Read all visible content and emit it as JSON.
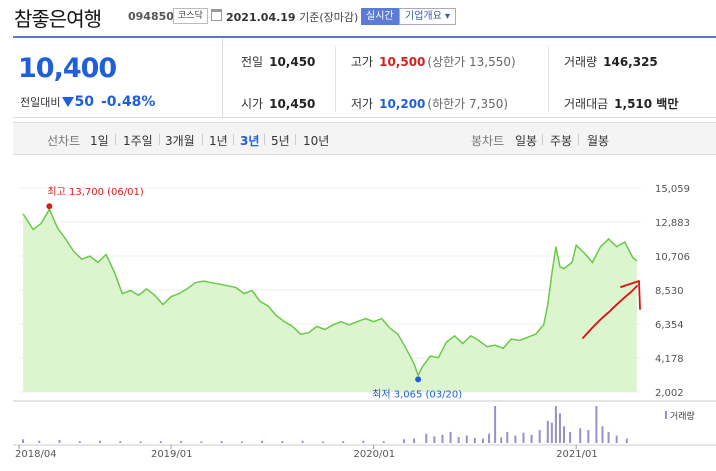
{
  "header": {
    "company_name": "참좋은여행",
    "code": "094850",
    "market": "코스닥",
    "date": "2021.04.19",
    "date_suffix": "기준(장마감)",
    "realtime_button": "실시간",
    "company_info_button": "기업개요 ▾"
  },
  "summary": {
    "price": "10,400",
    "change_label": "전일대비",
    "change": "50",
    "change_pct": "-0.48%",
    "items": [
      {
        "label": "전일",
        "value": "10,450"
      },
      {
        "label": "고가",
        "value": "10,500",
        "sub": "(상한가 13,550)"
      },
      {
        "label": "거래량",
        "value": "146,325"
      },
      {
        "label": "시가",
        "value": "10,450"
      },
      {
        "label": "저가",
        "value": "10,200",
        "sub": "(하한가 7,350)"
      },
      {
        "label": "거래대금",
        "value": "1,510 백만"
      }
    ]
  },
  "toolbar": {
    "line_chart_label": "선차트",
    "periods": [
      "1일",
      "1주일",
      "3개월",
      "1년",
      "3년",
      "5년",
      "10년"
    ],
    "selected_period": "3년",
    "candle_label": "봉차트",
    "candles": [
      "일봉",
      "주봉",
      "월봉"
    ]
  },
  "colors": {
    "accent": "#1f5fd9",
    "rise": "#d42020",
    "line": "#6bc94a",
    "fill": "#dcf5cf",
    "volume": "#9b8fc8"
  },
  "chart_data": {
    "type": "area",
    "title": "",
    "xlabel": "",
    "ylabel": "",
    "x_range": [
      "2018-04",
      "2021-04"
    ],
    "ylim": [
      2002,
      15059
    ],
    "y_ticks": [
      "15,059",
      "12,883",
      "10,706",
      "8,530",
      "6,354",
      "4,178",
      "2,002"
    ],
    "x_ticks": [
      "2018/04",
      "2019/01",
      "2020/01",
      "2021/01"
    ],
    "high_label": "최고 13,700 (06/01)",
    "low_label": "최저 3,065 (03/20)",
    "volume_legend": "거래량",
    "series": [
      {
        "values": [
          [
            2018.27,
            13400
          ],
          [
            2018.32,
            12400
          ],
          [
            2018.36,
            12800
          ],
          [
            2018.4,
            13700
          ],
          [
            2018.44,
            12500
          ],
          [
            2018.48,
            11800
          ],
          [
            2018.52,
            11000
          ],
          [
            2018.56,
            10500
          ],
          [
            2018.6,
            10700
          ],
          [
            2018.64,
            10300
          ],
          [
            2018.68,
            10800
          ],
          [
            2018.72,
            9700
          ],
          [
            2018.76,
            8300
          ],
          [
            2018.8,
            8500
          ],
          [
            2018.84,
            8200
          ],
          [
            2018.88,
            8600
          ],
          [
            2018.92,
            8200
          ],
          [
            2018.96,
            7600
          ],
          [
            2019.0,
            8100
          ],
          [
            2019.04,
            8300
          ],
          [
            2019.08,
            8600
          ],
          [
            2019.12,
            9000
          ],
          [
            2019.16,
            9100
          ],
          [
            2019.2,
            9000
          ],
          [
            2019.24,
            8900
          ],
          [
            2019.28,
            8800
          ],
          [
            2019.32,
            8700
          ],
          [
            2019.36,
            8300
          ],
          [
            2019.4,
            8500
          ],
          [
            2019.44,
            7800
          ],
          [
            2019.48,
            7500
          ],
          [
            2019.52,
            6900
          ],
          [
            2019.56,
            6500
          ],
          [
            2019.6,
            6200
          ],
          [
            2019.64,
            5700
          ],
          [
            2019.68,
            5800
          ],
          [
            2019.72,
            6200
          ],
          [
            2019.76,
            6000
          ],
          [
            2019.8,
            6300
          ],
          [
            2019.84,
            6500
          ],
          [
            2019.88,
            6300
          ],
          [
            2019.92,
            6500
          ],
          [
            2019.96,
            6700
          ],
          [
            2020.0,
            6500
          ],
          [
            2020.04,
            6700
          ],
          [
            2020.08,
            6100
          ],
          [
            2020.12,
            5700
          ],
          [
            2020.16,
            4800
          ],
          [
            2020.2,
            3800
          ],
          [
            2020.22,
            3065
          ],
          [
            2020.24,
            3600
          ],
          [
            2020.28,
            4300
          ],
          [
            2020.32,
            4200
          ],
          [
            2020.36,
            5200
          ],
          [
            2020.4,
            5600
          ],
          [
            2020.44,
            5100
          ],
          [
            2020.48,
            5600
          ],
          [
            2020.52,
            5300
          ],
          [
            2020.56,
            4900
          ],
          [
            2020.6,
            5000
          ],
          [
            2020.64,
            4800
          ],
          [
            2020.68,
            5400
          ],
          [
            2020.72,
            5300
          ],
          [
            2020.76,
            5500
          ],
          [
            2020.8,
            5700
          ],
          [
            2020.84,
            6300
          ],
          [
            2020.86,
            7600
          ],
          [
            2020.88,
            9600
          ],
          [
            2020.9,
            11300
          ],
          [
            2020.92,
            10000
          ],
          [
            2020.94,
            9900
          ],
          [
            2020.98,
            10300
          ],
          [
            2021.0,
            11400
          ],
          [
            2021.04,
            10900
          ],
          [
            2021.08,
            10300
          ],
          [
            2021.12,
            11300
          ],
          [
            2021.16,
            11800
          ],
          [
            2021.2,
            11300
          ],
          [
            2021.24,
            11600
          ],
          [
            2021.28,
            10600
          ],
          [
            2021.3,
            10400
          ]
        ]
      }
    ],
    "volume": [
      [
        2018.27,
        0.1
      ],
      [
        2018.35,
        0.06
      ],
      [
        2018.45,
        0.08
      ],
      [
        2018.55,
        0.05
      ],
      [
        2018.65,
        0.06
      ],
      [
        2018.75,
        0.05
      ],
      [
        2018.85,
        0.04
      ],
      [
        2018.95,
        0.05
      ],
      [
        2019.05,
        0.05
      ],
      [
        2019.15,
        0.04
      ],
      [
        2019.25,
        0.05
      ],
      [
        2019.35,
        0.04
      ],
      [
        2019.45,
        0.06
      ],
      [
        2019.55,
        0.05
      ],
      [
        2019.65,
        0.06
      ],
      [
        2019.75,
        0.04
      ],
      [
        2019.85,
        0.05
      ],
      [
        2019.95,
        0.06
      ],
      [
        2020.05,
        0.05
      ],
      [
        2020.15,
        0.1
      ],
      [
        2020.2,
        0.12
      ],
      [
        2020.26,
        0.25
      ],
      [
        2020.3,
        0.18
      ],
      [
        2020.34,
        0.22
      ],
      [
        2020.38,
        0.3
      ],
      [
        2020.42,
        0.16
      ],
      [
        2020.46,
        0.2
      ],
      [
        2020.5,
        0.14
      ],
      [
        2020.54,
        0.12
      ],
      [
        2020.57,
        0.25
      ],
      [
        2020.6,
        1.0
      ],
      [
        2020.63,
        0.15
      ],
      [
        2020.66,
        0.3
      ],
      [
        2020.7,
        0.2
      ],
      [
        2020.74,
        0.28
      ],
      [
        2020.78,
        0.22
      ],
      [
        2020.82,
        0.35
      ],
      [
        2020.86,
        0.6
      ],
      [
        2020.88,
        0.55
      ],
      [
        2020.9,
        1.0
      ],
      [
        2020.92,
        0.8
      ],
      [
        2020.94,
        0.45
      ],
      [
        2020.97,
        0.3
      ],
      [
        2021.02,
        0.4
      ],
      [
        2021.06,
        0.35
      ],
      [
        2021.1,
        1.0
      ],
      [
        2021.13,
        0.45
      ],
      [
        2021.16,
        0.3
      ],
      [
        2021.2,
        0.2
      ],
      [
        2021.25,
        0.12
      ]
    ]
  }
}
